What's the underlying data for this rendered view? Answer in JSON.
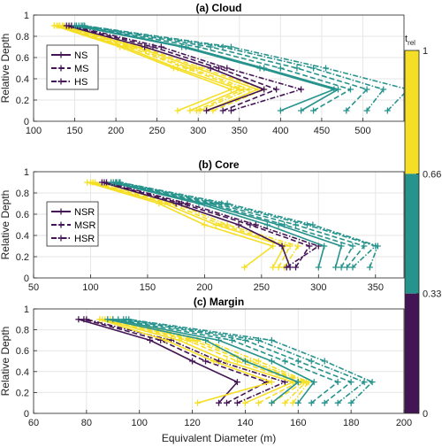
{
  "colors": {
    "yellow": "#f5df26",
    "teal": "#26938c",
    "purple": "#441554",
    "grid": "#e6e6e6",
    "axis": "#262626"
  },
  "colorbar": {
    "title": "t",
    "title_sub": "rel",
    "tick_labels": [
      "1",
      "0.66",
      "0.33",
      "0"
    ],
    "segments": [
      {
        "from": 0.66,
        "to": 1,
        "color": "#f5df26"
      },
      {
        "from": 0.33,
        "to": 0.66,
        "color": "#26938c"
      },
      {
        "from": 0,
        "to": 0.33,
        "color": "#441554"
      }
    ]
  },
  "chart_data": [
    {
      "type": "line",
      "title": "(a) Cloud",
      "xlabel": "",
      "ylabel": "Relative Depth",
      "xlim": [
        100,
        550
      ],
      "ylim": [
        0,
        1
      ],
      "xticks": [
        100,
        150,
        200,
        250,
        300,
        350,
        400,
        450,
        500
      ],
      "xtick_labels": [
        "100",
        "150",
        "200",
        "250",
        "300",
        "350",
        "400",
        "450",
        "500"
      ],
      "yticks": [
        0,
        0.2,
        0.4,
        0.6,
        0.8,
        1
      ],
      "ytick_labels": [
        "0",
        "0.2",
        "0.4",
        "0.6",
        "0.8",
        "1"
      ],
      "grid": true,
      "legend": {
        "position": "left",
        "entries": [
          {
            "label": "NS",
            "dash": "solid"
          },
          {
            "label": "MS",
            "dash": "dashed"
          },
          {
            "label": "HS",
            "dash": "dashdot"
          }
        ]
      },
      "y": [
        0.1,
        0.3,
        0.5,
        0.7,
        0.9
      ],
      "series": [
        {
          "group": "yellow",
          "dash": "solid",
          "x": [
            275,
            340,
            270,
            205,
            125
          ]
        },
        {
          "group": "yellow",
          "dash": "solid",
          "x": [
            290,
            350,
            275,
            210,
            128
          ]
        },
        {
          "group": "yellow",
          "dash": "dashed",
          "x": [
            298,
            355,
            285,
            215,
            130
          ]
        },
        {
          "group": "yellow",
          "dash": "dashdot",
          "x": [
            302,
            362,
            290,
            220,
            132
          ]
        },
        {
          "group": "yellow",
          "dash": "solid",
          "x": [
            310,
            372,
            298,
            225,
            135
          ]
        },
        {
          "group": "yellow",
          "dash": "dashed",
          "x": [
            318,
            380,
            305,
            230,
            137
          ]
        },
        {
          "group": "purple",
          "dash": "solid",
          "x": [
            310,
            380,
            315,
            235,
            140
          ]
        },
        {
          "group": "purple",
          "dash": "dashed",
          "x": [
            330,
            395,
            325,
            245,
            143
          ]
        },
        {
          "group": "purple",
          "dash": "dashdot",
          "x": [
            340,
            425,
            335,
            255,
            146
          ]
        },
        {
          "group": "teal",
          "dash": "solid",
          "x": [
            400,
            465,
            375,
            280,
            150
          ]
        },
        {
          "group": "teal",
          "dash": "solid",
          "x": [
            425,
            470,
            380,
            285,
            152
          ]
        },
        {
          "group": "teal",
          "dash": "dashed",
          "x": [
            440,
            485,
            400,
            300,
            155
          ]
        },
        {
          "group": "teal",
          "dash": "dashed",
          "x": [
            480,
            505,
            420,
            315,
            158
          ]
        },
        {
          "group": "teal",
          "dash": "dashdot",
          "x": [
            505,
            525,
            440,
            330,
            160
          ]
        },
        {
          "group": "teal",
          "dash": "dashdot",
          "x": [
            530,
            555,
            455,
            340,
            162
          ]
        }
      ]
    },
    {
      "type": "line",
      "title": "(b) Core",
      "xlabel": "",
      "ylabel": "Relative Depth",
      "xlim": [
        50,
        375
      ],
      "ylim": [
        0,
        1
      ],
      "xticks": [
        50,
        100,
        150,
        200,
        250,
        300,
        350
      ],
      "xtick_labels": [
        "50",
        "100",
        "150",
        "200",
        "250",
        "300",
        "350"
      ],
      "yticks": [
        0,
        0.2,
        0.4,
        0.6,
        0.8,
        1
      ],
      "ytick_labels": [
        "0",
        "0.2",
        "0.4",
        "0.6",
        "0.8",
        "1"
      ],
      "grid": true,
      "legend": {
        "position": "left",
        "entries": [
          {
            "label": "NSR",
            "dash": "solid"
          },
          {
            "label": "MSR",
            "dash": "dashed"
          },
          {
            "label": "HSR",
            "dash": "dashdot"
          }
        ]
      },
      "y": [
        0.1,
        0.3,
        0.5,
        0.7,
        0.9
      ],
      "series": [
        {
          "group": "yellow",
          "dash": "solid",
          "x": [
            235,
            260,
            200,
            160,
            97
          ]
        },
        {
          "group": "yellow",
          "dash": "solid",
          "x": [
            260,
            270,
            210,
            165,
            100
          ]
        },
        {
          "group": "yellow",
          "dash": "dashed",
          "x": [
            265,
            275,
            215,
            170,
            102
          ]
        },
        {
          "group": "yellow",
          "dash": "dashdot",
          "x": [
            270,
            282,
            220,
            175,
            104
          ]
        },
        {
          "group": "purple",
          "dash": "solid",
          "x": [
            275,
            268,
            230,
            175,
            110
          ]
        },
        {
          "group": "purple",
          "dash": "dashed",
          "x": [
            280,
            292,
            240,
            180,
            112
          ]
        },
        {
          "group": "purple",
          "dash": "dashdot",
          "x": [
            272,
            300,
            245,
            185,
            114
          ]
        },
        {
          "group": "teal",
          "dash": "solid",
          "x": [
            300,
            305,
            255,
            195,
            118
          ]
        },
        {
          "group": "teal",
          "dash": "solid",
          "x": [
            315,
            320,
            265,
            200,
            120
          ]
        },
        {
          "group": "teal",
          "dash": "dashed",
          "x": [
            320,
            330,
            270,
            205,
            122
          ]
        },
        {
          "group": "teal",
          "dash": "dashed",
          "x": [
            325,
            340,
            280,
            210,
            123
          ]
        },
        {
          "group": "teal",
          "dash": "dashdot",
          "x": [
            330,
            350,
            290,
            215,
            125
          ]
        },
        {
          "group": "teal",
          "dash": "dashdot",
          "x": [
            345,
            352,
            295,
            220,
            126
          ]
        }
      ]
    },
    {
      "type": "line",
      "title": "(c) Margin",
      "xlabel": "Equivalent Diameter (m)",
      "ylabel": "Relative Depth",
      "xlim": [
        60,
        200
      ],
      "ylim": [
        0,
        1
      ],
      "xticks": [
        60,
        80,
        100,
        120,
        140,
        160,
        180,
        200
      ],
      "xtick_labels": [
        "60",
        "80",
        "100",
        "120",
        "140",
        "160",
        "180",
        "200"
      ],
      "yticks": [
        0,
        0.2,
        0.4,
        0.6,
        0.8,
        1
      ],
      "ytick_labels": [
        "0",
        "0.2",
        "0.4",
        "0.6",
        "0.8",
        "1"
      ],
      "grid": true,
      "legend": null,
      "y": [
        0.1,
        0.3,
        0.5,
        0.7,
        0.9
      ],
      "series": [
        {
          "group": "purple",
          "dash": "solid",
          "x": [
            130,
            137,
            120,
            104,
            77
          ]
        },
        {
          "group": "purple",
          "dash": "dashed",
          "x": [
            133,
            148,
            125,
            108,
            79
          ]
        },
        {
          "group": "purple",
          "dash": "dashdot",
          "x": [
            137,
            155,
            130,
            112,
            80
          ]
        },
        {
          "group": "yellow",
          "dash": "solid",
          "x": [
            122,
            150,
            128,
            110,
            85
          ]
        },
        {
          "group": "yellow",
          "dash": "solid",
          "x": [
            140,
            158,
            133,
            115,
            86
          ]
        },
        {
          "group": "yellow",
          "dash": "dashed",
          "x": [
            145,
            160,
            137,
            118,
            87
          ]
        },
        {
          "group": "yellow",
          "dash": "dashed",
          "x": [
            150,
            162,
            140,
            120,
            88
          ]
        },
        {
          "group": "yellow",
          "dash": "dashdot",
          "x": [
            155,
            163,
            142,
            122,
            89
          ]
        },
        {
          "group": "yellow",
          "dash": "dashdot",
          "x": [
            158,
            164,
            145,
            125,
            90
          ]
        },
        {
          "group": "teal",
          "dash": "solid",
          "x": [
            150,
            160,
            140,
            125,
            88
          ]
        },
        {
          "group": "teal",
          "dash": "solid",
          "x": [
            160,
            166,
            150,
            130,
            90
          ]
        },
        {
          "group": "teal",
          "dash": "dashed",
          "x": [
            165,
            175,
            155,
            135,
            92
          ]
        },
        {
          "group": "teal",
          "dash": "dashed",
          "x": [
            170,
            180,
            160,
            140,
            94
          ]
        },
        {
          "group": "teal",
          "dash": "dashdot",
          "x": [
            175,
            185,
            165,
            145,
            95
          ]
        },
        {
          "group": "teal",
          "dash": "dashdot",
          "x": [
            180,
            188,
            170,
            150,
            96
          ]
        }
      ]
    }
  ]
}
